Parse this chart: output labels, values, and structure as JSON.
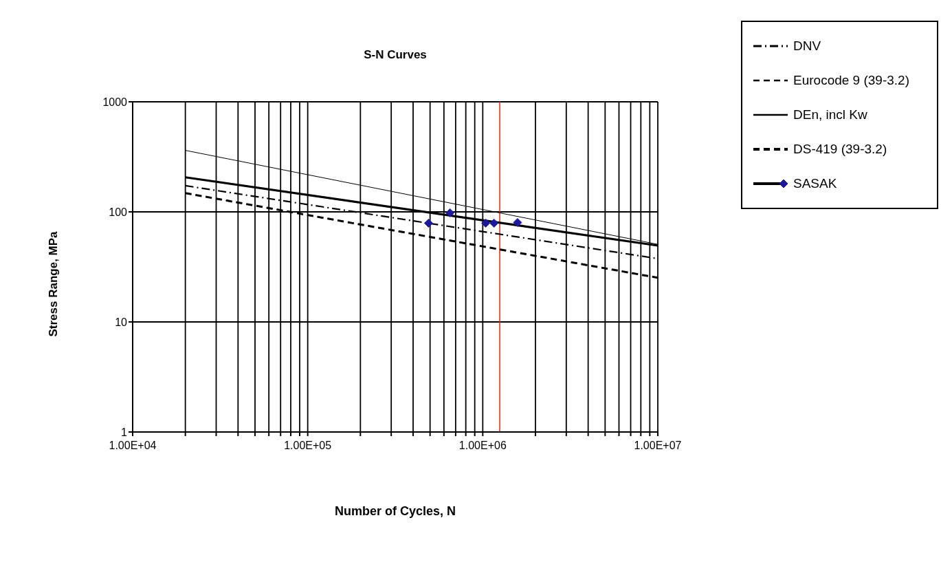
{
  "chart_data": {
    "type": "line",
    "title": "S-N Curves",
    "xlabel": "Number of Cycles, N",
    "ylabel": "Stress Range, MPa",
    "log": "xy",
    "xlim": [
      10000,
      10000000
    ],
    "ylim": [
      1,
      1000
    ],
    "xticks": [
      {
        "value": 10000,
        "label": "1.00E+04"
      },
      {
        "value": 20000,
        "label": null
      },
      {
        "value": 30000,
        "label": null
      },
      {
        "value": 40000,
        "label": null
      },
      {
        "value": 50000,
        "label": null
      },
      {
        "value": 60000,
        "label": null
      },
      {
        "value": 70000,
        "label": null
      },
      {
        "value": 80000,
        "label": null
      },
      {
        "value": 90000,
        "label": null
      },
      {
        "value": 100000,
        "label": "1.00E+05"
      },
      {
        "value": 200000,
        "label": null
      },
      {
        "value": 300000,
        "label": null
      },
      {
        "value": 400000,
        "label": null
      },
      {
        "value": 500000,
        "label": null
      },
      {
        "value": 600000,
        "label": null
      },
      {
        "value": 700000,
        "label": null
      },
      {
        "value": 800000,
        "label": null
      },
      {
        "value": 900000,
        "label": null
      },
      {
        "value": 1000000,
        "label": "1.00E+06"
      },
      {
        "value": 2000000,
        "label": null
      },
      {
        "value": 3000000,
        "label": null
      },
      {
        "value": 4000000,
        "label": null
      },
      {
        "value": 5000000,
        "label": null
      },
      {
        "value": 6000000,
        "label": null
      },
      {
        "value": 7000000,
        "label": null
      },
      {
        "value": 8000000,
        "label": null
      },
      {
        "value": 9000000,
        "label": null
      },
      {
        "value": 10000000,
        "label": "1.00E+07"
      }
    ],
    "yticks": [
      1,
      10,
      100,
      1000
    ],
    "grid": true,
    "legend": "top right",
    "ref_lines": [
      {
        "axis": "x",
        "value": 1250000,
        "color": "#e8260c"
      }
    ],
    "series": [
      {
        "name": "DNV",
        "color": "#000000",
        "line_style": "dashdot",
        "x": [
          20000,
          10000000
        ],
        "values": [
          173,
          37.6
        ]
      },
      {
        "name": "Eurocode 9 (39-3.2)",
        "color": "#000000",
        "line_style": "dashed",
        "x": [
          20000,
          10000000
        ],
        "values": [
          148,
          25.2
        ]
      },
      {
        "name": "DEn, incl Kw",
        "color": "#000000",
        "line_style": "solid",
        "x": [
          20000,
          10000000
        ],
        "values": [
          362,
          50.7
        ]
      },
      {
        "name": "DS-419 (39-3.2)",
        "color": "#000000",
        "line_style": "dashed",
        "x": [
          20000,
          10000000
        ],
        "values": [
          148,
          25.2
        ]
      },
      {
        "color": "#000000",
        "line_style": "solid",
        "x": [
          20000,
          10000000
        ],
        "values": [
          206,
          49.4
        ]
      },
      {
        "name": "SASAK",
        "type": "scatter",
        "color": "#1a1a9a",
        "marker": "diamond",
        "x": [
          490000,
          650000,
          1040000,
          1160000,
          1580000
        ],
        "values": [
          79,
          98,
          79,
          79,
          80
        ]
      }
    ]
  }
}
